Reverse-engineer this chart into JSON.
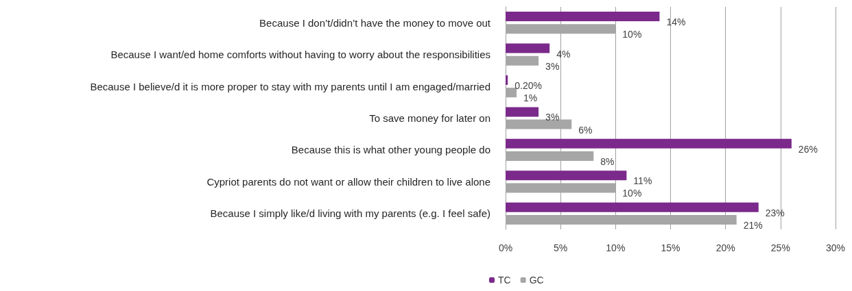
{
  "chart_data": {
    "type": "bar",
    "orientation": "horizontal",
    "categories": [
      "Because I don’t/didn’t have the money to move out",
      "Because I want/ed home comforts without having to worry about the responsibilities",
      "Because I believe/d it is more proper to stay with my parents until I am engaged/married",
      "To save money for later on",
      "Because this is what other young people do",
      "Cypriot parents do not want or allow their children to live alone",
      "Because I simply like/d living with my parents (e.g. I feel safe)"
    ],
    "series": [
      {
        "name": "TC",
        "color": "#7b2a8b",
        "values": [
          14,
          4,
          0.2,
          3,
          26,
          11,
          23
        ],
        "value_labels": [
          "14%",
          "4%",
          "0.20%",
          "3%",
          "26%",
          "11%",
          "23%"
        ]
      },
      {
        "name": "GC",
        "color": "#a6a6a6",
        "values": [
          10,
          3,
          1,
          6,
          8,
          10,
          21
        ],
        "value_labels": [
          "10%",
          "3%",
          "1%",
          "6%",
          "8%",
          "10%",
          "21%"
        ]
      }
    ],
    "xlim": [
      0,
      30
    ],
    "xticks": [
      {
        "value": 0,
        "label": "0%"
      },
      {
        "value": 5,
        "label": "5%"
      },
      {
        "value": 10,
        "label": "10%"
      },
      {
        "value": 15,
        "label": "15%"
      },
      {
        "value": 20,
        "label": "20%"
      },
      {
        "value": 25,
        "label": "25%"
      },
      {
        "value": 30,
        "label": "30%"
      }
    ],
    "grid": "x",
    "legend": "bottom"
  }
}
